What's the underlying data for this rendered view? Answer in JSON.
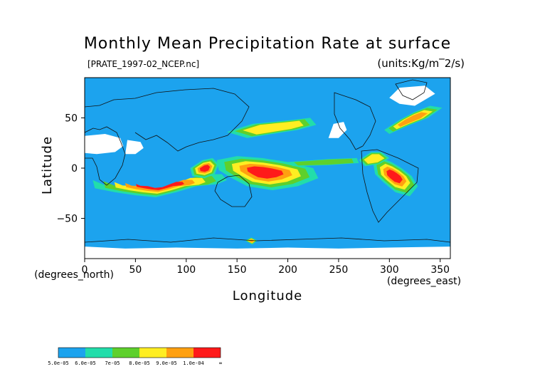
{
  "chart_data": {
    "type": "heatmap",
    "title": "Monthly Mean Precipitation Rate at surface",
    "source_label": "[PRATE_1997-02_NCEP.nc]",
    "units_label": "(units:Kg/m‾2/s)",
    "xlabel": "Longitude",
    "ylabel": "Latitude",
    "x_unit_label": "(degrees_east)",
    "y_unit_label": "(degrees_north)",
    "xlim": [
      0,
      360
    ],
    "ylim": [
      -90,
      90
    ],
    "x_ticks": [
      0,
      50,
      100,
      150,
      200,
      250,
      300,
      350
    ],
    "x_tick_labels": [
      "0",
      "50",
      "100",
      "150",
      "200",
      "250",
      "300",
      "350"
    ],
    "y_ticks": [
      50,
      0,
      -50
    ],
    "y_tick_labels": [
      "50",
      "0",
      "−50"
    ],
    "colorbar": {
      "tick_labels": [
        "5.0e-05",
        "6.0e-05",
        "7e-05",
        "8.0e-05",
        "9.0e-05",
        "1.0e-04",
        "∞"
      ],
      "colors": [
        "#1ca3ee",
        "#22ddaa",
        "#5ed02c",
        "#ffee22",
        "#ffa010",
        "#ff1a1a"
      ]
    },
    "colors": {
      "background_field": "#1ca3ee",
      "missing": "#ffffff",
      "coast": "#111111"
    },
    "regions": [
      {
        "name": "Indian-Ocean-band",
        "level": 5,
        "points": [
          [
            8,
            -12
          ],
          [
            20,
            -17
          ],
          [
            40,
            -18
          ],
          [
            60,
            -23
          ],
          [
            80,
            -21
          ],
          [
            100,
            -13
          ],
          [
            118,
            -6
          ],
          [
            135,
            -6
          ],
          [
            140,
            -12
          ],
          [
            130,
            -16
          ],
          [
            110,
            -18
          ],
          [
            90,
            -24
          ],
          [
            70,
            -29
          ],
          [
            50,
            -27
          ],
          [
            30,
            -24
          ],
          [
            10,
            -20
          ]
        ]
      },
      {
        "name": "SPCZ-band",
        "level": 5,
        "points": [
          [
            130,
            8
          ],
          [
            150,
            12
          ],
          [
            175,
            10
          ],
          [
            200,
            6
          ],
          [
            225,
            0
          ],
          [
            230,
            -10
          ],
          [
            210,
            -18
          ],
          [
            185,
            -22
          ],
          [
            160,
            -18
          ],
          [
            145,
            -10
          ],
          [
            132,
            -2
          ]
        ]
      },
      {
        "name": "Maritime-continent",
        "level": 5,
        "points": [
          [
            104,
            0
          ],
          [
            116,
            8
          ],
          [
            126,
            10
          ],
          [
            132,
            4
          ],
          [
            128,
            -6
          ],
          [
            118,
            -10
          ],
          [
            106,
            -8
          ]
        ]
      },
      {
        "name": "North-Pacific-storm-track",
        "level": 3,
        "points": [
          [
            140,
            36
          ],
          [
            165,
            44
          ],
          [
            185,
            46
          ],
          [
            205,
            48
          ],
          [
            222,
            50
          ],
          [
            228,
            43
          ],
          [
            210,
            38
          ],
          [
            185,
            34
          ],
          [
            160,
            30
          ]
        ]
      },
      {
        "name": "North-Atlantic-storm-track",
        "level": 4,
        "points": [
          [
            295,
            38
          ],
          [
            310,
            48
          ],
          [
            325,
            56
          ],
          [
            340,
            62
          ],
          [
            352,
            60
          ],
          [
            338,
            50
          ],
          [
            318,
            42
          ],
          [
            300,
            34
          ]
        ]
      },
      {
        "name": "Amazon",
        "level": 5,
        "points": [
          [
            284,
            5
          ],
          [
            292,
            10
          ],
          [
            302,
            6
          ],
          [
            312,
            0
          ],
          [
            322,
            -8
          ],
          [
            328,
            -18
          ],
          [
            320,
            -28
          ],
          [
            306,
            -24
          ],
          [
            294,
            -14
          ],
          [
            286,
            -6
          ]
        ]
      },
      {
        "name": "Caribbean-east-Pacific",
        "level": 3,
        "points": [
          [
            270,
            8
          ],
          [
            282,
            16
          ],
          [
            292,
            16
          ],
          [
            300,
            10
          ],
          [
            290,
            4
          ],
          [
            276,
            2
          ]
        ]
      },
      {
        "name": "Equatorial-Pacific-ITCZ",
        "level": 2,
        "points": [
          [
            200,
            6
          ],
          [
            240,
            9
          ],
          [
            268,
            10
          ],
          [
            270,
            5
          ],
          [
            240,
            3
          ],
          [
            205,
            2
          ]
        ]
      },
      {
        "name": "Southern-Ocean-patch",
        "level": 4,
        "points": [
          [
            158,
            -72
          ],
          [
            164,
            -69
          ],
          [
            170,
            -72
          ],
          [
            165,
            -76
          ]
        ]
      }
    ],
    "missing_regions": [
      {
        "name": "Sahara",
        "points": [
          [
            0,
            15
          ],
          [
            0,
            32
          ],
          [
            20,
            34
          ],
          [
            35,
            30
          ],
          [
            38,
            22
          ],
          [
            30,
            16
          ],
          [
            12,
            14
          ]
        ]
      },
      {
        "name": "Arabia",
        "points": [
          [
            40,
            14
          ],
          [
            42,
            28
          ],
          [
            55,
            26
          ],
          [
            58,
            20
          ],
          [
            50,
            14
          ]
        ]
      },
      {
        "name": "Antarctica-edge",
        "points": [
          [
            0,
            -90
          ],
          [
            0,
            -78
          ],
          [
            40,
            -80
          ],
          [
            90,
            -79
          ],
          [
            150,
            -80
          ],
          [
            200,
            -79
          ],
          [
            250,
            -80
          ],
          [
            300,
            -79
          ],
          [
            360,
            -78
          ],
          [
            360,
            -90
          ]
        ]
      },
      {
        "name": "Greenland",
        "points": [
          [
            300,
            70
          ],
          [
            310,
            80
          ],
          [
            335,
            82
          ],
          [
            345,
            74
          ],
          [
            325,
            62
          ],
          [
            310,
            64
          ]
        ]
      },
      {
        "name": "Western-North-America",
        "points": [
          [
            240,
            30
          ],
          [
            245,
            44
          ],
          [
            255,
            46
          ],
          [
            258,
            38
          ],
          [
            250,
            30
          ]
        ]
      }
    ]
  }
}
